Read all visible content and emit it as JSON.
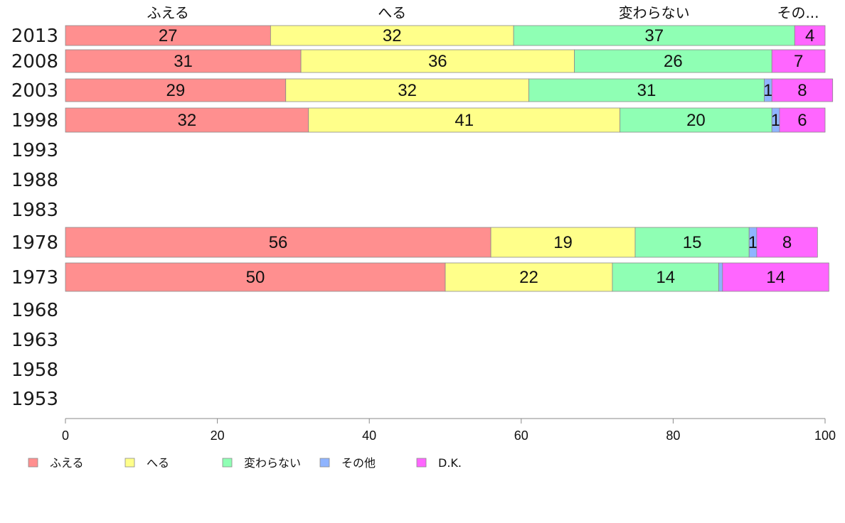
{
  "chart_data": {
    "type": "bar",
    "orientation": "horizontal",
    "stacked": true,
    "categories": [
      "2013",
      "2008",
      "2003",
      "1998",
      "1993",
      "1988",
      "1983",
      "1978",
      "1973",
      "1968",
      "1963",
      "1958",
      "1953"
    ],
    "series": [
      {
        "name": "ふえる",
        "color": "#ff8f8f",
        "values": [
          27,
          31,
          29,
          32,
          null,
          null,
          null,
          56,
          50,
          null,
          null,
          null,
          null
        ]
      },
      {
        "name": "へる",
        "color": "#ffff8a",
        "values": [
          32,
          36,
          32,
          41,
          null,
          null,
          null,
          19,
          22,
          null,
          null,
          null,
          null
        ]
      },
      {
        "name": "変わらない",
        "color": "#8fffb4",
        "values": [
          37,
          26,
          31,
          20,
          null,
          null,
          null,
          15,
          14,
          null,
          null,
          null,
          null
        ]
      },
      {
        "name": "その他",
        "color": "#8fb4ff",
        "values": [
          0,
          0,
          1,
          1,
          null,
          null,
          null,
          1,
          0.5,
          null,
          null,
          null,
          null
        ]
      },
      {
        "name": "D.K.",
        "color": "#ff66ff",
        "values": [
          4,
          7,
          8,
          6,
          null,
          null,
          null,
          8,
          14,
          null,
          null,
          null,
          null
        ]
      }
    ],
    "top_labels": [
      "ふえる",
      "へる",
      "変わらない",
      "その..."
    ],
    "xlim": [
      0,
      100
    ],
    "xticks": [
      0,
      20,
      40,
      60,
      80,
      100
    ],
    "legend_position": "bottom-left",
    "grid": false
  }
}
